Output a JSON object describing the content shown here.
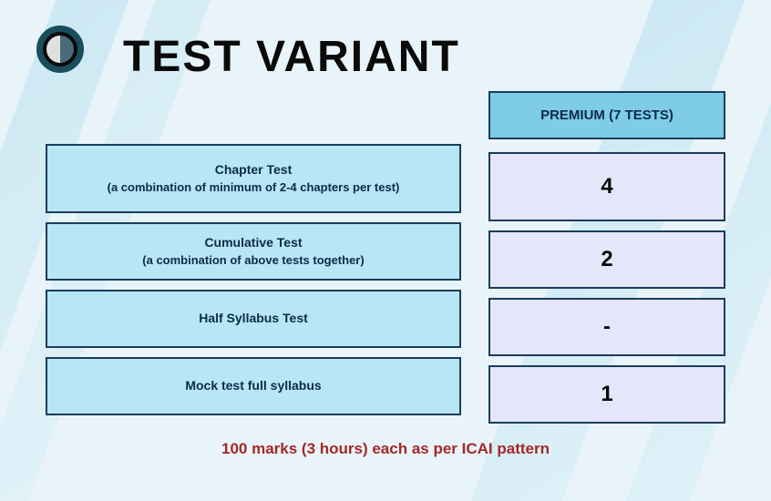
{
  "title": "TEST VARIANT",
  "header": {
    "column_label": "PREMIUM (7 TESTS)"
  },
  "rows": [
    {
      "title": "Chapter Test",
      "subtitle": "(a combination of minimum of 2-4 chapters per test)",
      "value": "4"
    },
    {
      "title": "Cumulative Test",
      "subtitle": "(a combination of above tests together)",
      "value": "2"
    },
    {
      "title": "Half Syllabus Test",
      "subtitle": "",
      "value": "-"
    },
    {
      "title": "Mock test full syllabus",
      "subtitle": "",
      "value": "1"
    }
  ],
  "footer": "100 marks (3 hours) each as per ICAI pattern",
  "colors": {
    "header_bg": "#7ecce8",
    "desc_bg": "#b8e6f5",
    "value_bg": "#e6e6fa",
    "border": "#1a3d5c",
    "title_color": "#0a0a0a",
    "text_color": "#0d2a4a",
    "footer_color": "#a62828",
    "page_bg": "#e8f4f9"
  }
}
